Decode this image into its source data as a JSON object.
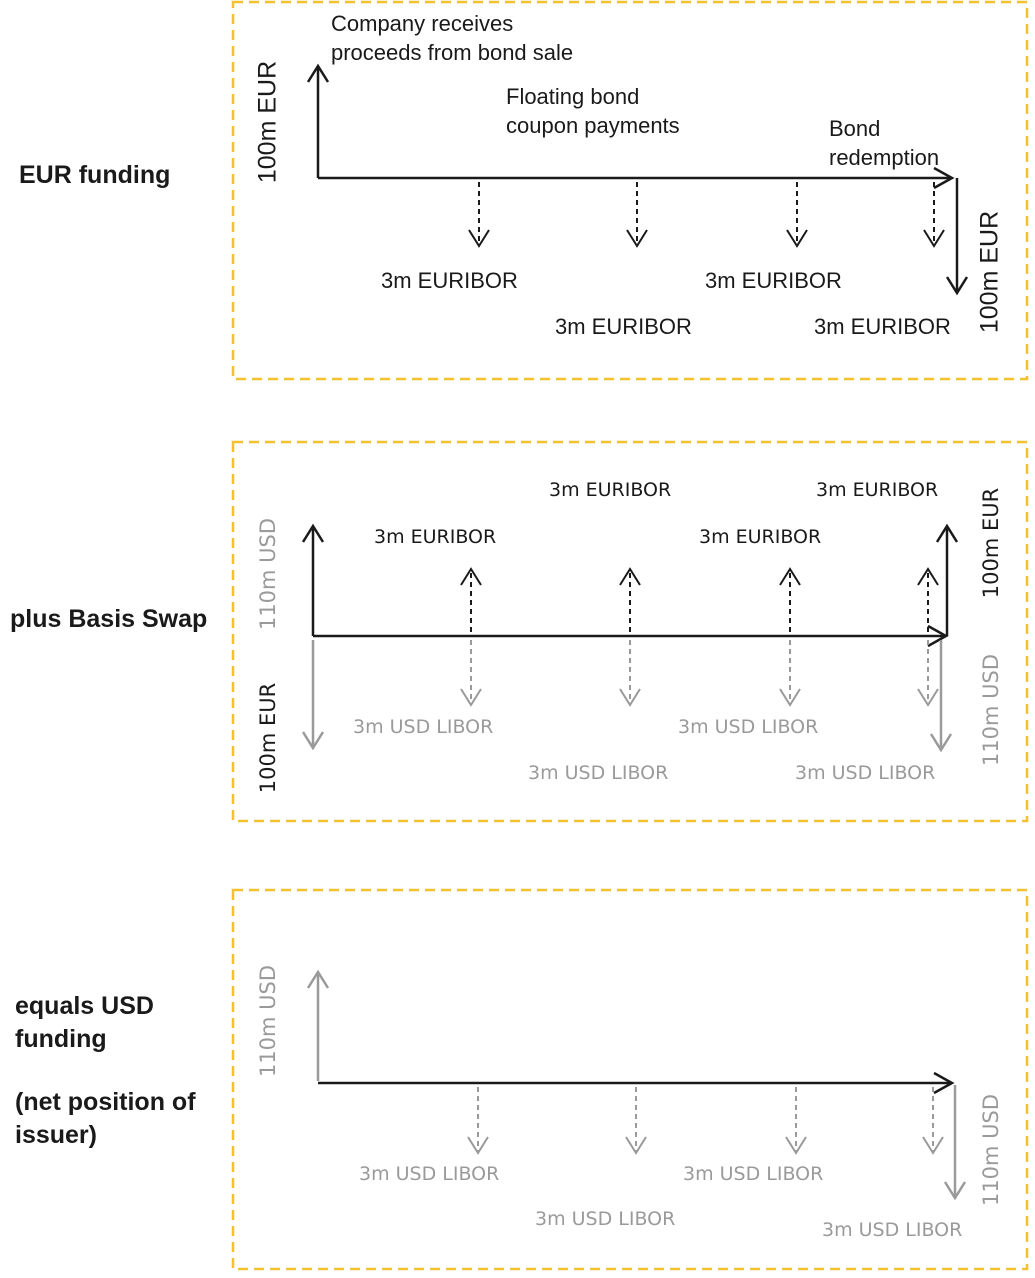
{
  "sections": [
    {
      "title": "EUR funding",
      "annotations": {
        "proceeds_line1": "Company receives",
        "proceeds_line2": "proceeds from bond sale",
        "coupon_line1": "Floating bond",
        "coupon_line2": "coupon payments",
        "redemption_line1": "Bond",
        "redemption_line2": "redemption"
      },
      "left_amount": "100m EUR",
      "right_amount": "100m EUR",
      "payments": [
        "3m EURIBOR",
        "3m EURIBOR",
        "3m EURIBOR",
        "3m EURIBOR"
      ]
    },
    {
      "title": "plus Basis Swap",
      "left_up_amount": "110m USD",
      "left_down_amount": "100m EUR",
      "right_up_amount": "100m EUR",
      "right_down_amount": "110m USD",
      "received": [
        "3m EURIBOR",
        "3m EURIBOR",
        "3m EURIBOR",
        "3m EURIBOR"
      ],
      "paid": [
        "3m USD LIBOR",
        "3m USD LIBOR",
        "3m USD LIBOR",
        "3m USD LIBOR"
      ]
    },
    {
      "title_line1": "equals USD",
      "title_line2": "funding",
      "subtitle_line1": "(net position of",
      "subtitle_line2": "issuer)",
      "left_amount": "110m USD",
      "right_amount": "110m USD",
      "payments": [
        "3m USD LIBOR",
        "3m USD LIBOR",
        "3m USD LIBOR",
        "3m USD LIBOR"
      ]
    }
  ],
  "colors": {
    "frame": "#f2c12e",
    "dark": "#1a1a1a",
    "grey": "#9a9a9a"
  }
}
